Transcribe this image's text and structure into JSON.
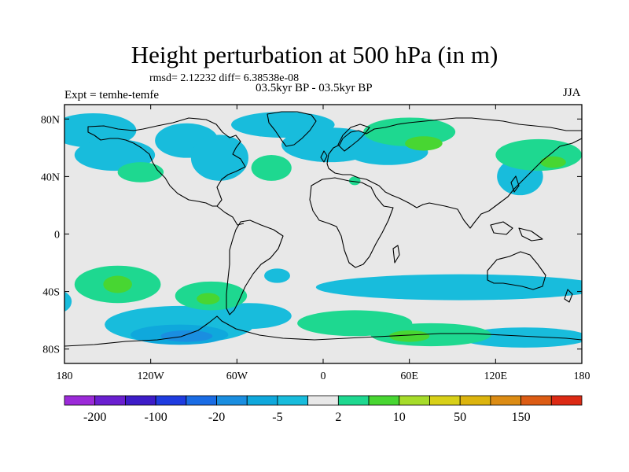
{
  "title": "Height perturbation at 500 hPa (in m)",
  "stats": "rmsd= 2.12232 diff= 6.38538e-08",
  "period": "03.5kyr BP - 03.5kyr BP",
  "experiment": "Expt = temhe-temfe",
  "season": "JJA",
  "map": {
    "projection": "cylindrical equidistant",
    "lon_range": [
      -180,
      180
    ],
    "lat_range": [
      -90,
      90
    ],
    "background_color": "#e8e8e8",
    "lat_ticks": [
      {
        "value": 80,
        "label": "80N"
      },
      {
        "value": 40,
        "label": "40N"
      },
      {
        "value": 0,
        "label": "0"
      },
      {
        "value": -40,
        "label": "40S"
      },
      {
        "value": -80,
        "label": "80S"
      }
    ],
    "lon_ticks": [
      {
        "value": -180,
        "label": "180"
      },
      {
        "value": -120,
        "label": "120W"
      },
      {
        "value": -60,
        "label": "60W"
      },
      {
        "value": 0,
        "label": "0"
      },
      {
        "value": 60,
        "label": "60E"
      },
      {
        "value": 120,
        "label": "120E"
      },
      {
        "value": 180,
        "label": "180"
      }
    ]
  },
  "colorbar": {
    "colors": [
      "#9b2ad8",
      "#6a1fd0",
      "#3d1cc8",
      "#1f3ce0",
      "#1a6ce4",
      "#1a8ee0",
      "#0fa8dc",
      "#18bcdc",
      "#e8e8e8",
      "#1ed890",
      "#48d632",
      "#a6dc2a",
      "#d8d018",
      "#dcb40e",
      "#dc8c14",
      "#dc5c14",
      "#dc2a14"
    ],
    "labels": [
      "-200",
      "-100",
      "-20",
      "-5",
      "2",
      "10",
      "50",
      "150"
    ]
  },
  "anomaly_regions": [
    {
      "level": "-5",
      "color": "#18bcdc",
      "lon": -160,
      "lat": 72,
      "rlon": 30,
      "rlat": 12
    },
    {
      "level": "-5",
      "color": "#18bcdc",
      "lon": -145,
      "lat": 55,
      "rlon": 28,
      "rlat": 11
    },
    {
      "level": "-5",
      "color": "#18bcdc",
      "lon": -95,
      "lat": 65,
      "rlon": 22,
      "rlat": 12
    },
    {
      "level": "-5",
      "color": "#18bcdc",
      "lon": -72,
      "lat": 53,
      "rlon": 20,
      "rlat": 16
    },
    {
      "level": "-5",
      "color": "#18bcdc",
      "lon": -28,
      "lat": 76,
      "rlon": 36,
      "rlat": 9
    },
    {
      "level": "-5",
      "color": "#18bcdc",
      "lon": 5,
      "lat": 62,
      "rlon": 34,
      "rlat": 12
    },
    {
      "level": "-5",
      "color": "#18bcdc",
      "lon": 45,
      "lat": 57,
      "rlon": 28,
      "rlat": 9
    },
    {
      "level": "-5",
      "color": "#18bcdc",
      "lon": 137,
      "lat": 40,
      "rlon": 16,
      "rlat": 13
    },
    {
      "level": "-5",
      "color": "#18bcdc",
      "lon": -185,
      "lat": -47,
      "rlon": 10,
      "rlat": 8
    },
    {
      "level": "-5",
      "color": "#18bcdc",
      "lon": -32,
      "lat": -29,
      "rlon": 9,
      "rlat": 5
    },
    {
      "level": "-5",
      "color": "#18bcdc",
      "lon": 95,
      "lat": -37,
      "rlon": 100,
      "rlat": 9
    },
    {
      "level": "-5",
      "color": "#18bcdc",
      "lon": -100,
      "lat": -63,
      "rlon": 52,
      "rlat": 13
    },
    {
      "level": "-5",
      "color": "#18bcdc",
      "lon": -52,
      "lat": -57,
      "rlon": 30,
      "rlat": 9
    },
    {
      "level": "-5",
      "color": "#18bcdc",
      "lon": 140,
      "lat": -72,
      "rlon": 45,
      "rlat": 7
    },
    {
      "level": "-20",
      "color": "#0fa8dc",
      "lon": -100,
      "lat": -70,
      "rlon": 34,
      "rlat": 7
    },
    {
      "level": "-20",
      "color": "#1a8ee0",
      "lon": -95,
      "lat": -71,
      "rlon": 18,
      "rlat": 4
    },
    {
      "level": "2",
      "color": "#1ed890",
      "lon": -127,
      "lat": 43,
      "rlon": 16,
      "rlat": 7
    },
    {
      "level": "2",
      "color": "#1ed890",
      "lon": -36,
      "lat": 46,
      "rlon": 14,
      "rlat": 9
    },
    {
      "level": "2",
      "color": "#1ed890",
      "lon": 22,
      "lat": 37,
      "rlon": 4,
      "rlat": 3
    },
    {
      "level": "2",
      "color": "#1ed890",
      "lon": 60,
      "lat": 71,
      "rlon": 32,
      "rlat": 10
    },
    {
      "level": "2",
      "color": "#1ed890",
      "lon": 150,
      "lat": 55,
      "rlon": 30,
      "rlat": 11
    },
    {
      "level": "2",
      "color": "#1ed890",
      "lon": -143,
      "lat": -35,
      "rlon": 30,
      "rlat": 13
    },
    {
      "level": "2",
      "color": "#1ed890",
      "lon": -78,
      "lat": -43,
      "rlon": 25,
      "rlat": 10
    },
    {
      "level": "2",
      "color": "#1ed890",
      "lon": 22,
      "lat": -62,
      "rlon": 40,
      "rlat": 9
    },
    {
      "level": "2",
      "color": "#1ed890",
      "lon": 75,
      "lat": -70,
      "rlon": 42,
      "rlat": 8
    },
    {
      "level": "10",
      "color": "#48d632",
      "lon": 70,
      "lat": 63,
      "rlon": 13,
      "rlat": 5
    },
    {
      "level": "10",
      "color": "#48d632",
      "lon": 160,
      "lat": 50,
      "rlon": 9,
      "rlat": 4
    },
    {
      "level": "10",
      "color": "#48d632",
      "lon": -143,
      "lat": -35,
      "rlon": 10,
      "rlat": 6
    },
    {
      "level": "10",
      "color": "#48d632",
      "lon": -80,
      "lat": -45,
      "rlon": 8,
      "rlat": 4
    },
    {
      "level": "10",
      "color": "#48d632",
      "lon": 60,
      "lat": -71,
      "rlon": 14,
      "rlat": 4
    }
  ]
}
